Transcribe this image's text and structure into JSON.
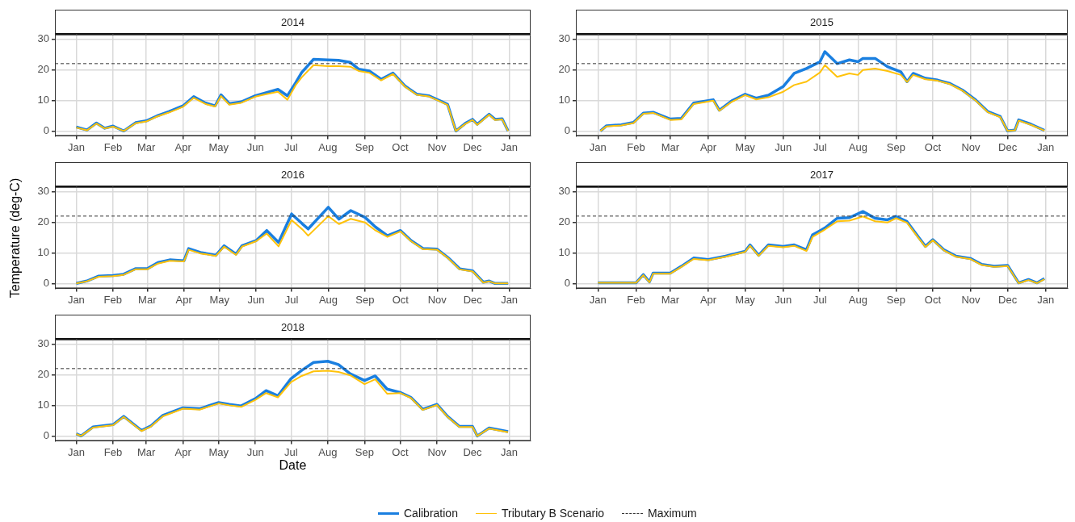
{
  "chart_data": [
    {
      "type": "line",
      "title": "2014",
      "xlim": [
        "2013-12-14",
        "2015-01-19"
      ],
      "ylim": [
        -1.6,
        31.5
      ],
      "yticks": [
        0,
        10,
        20,
        30
      ],
      "grid": true,
      "legend": "bottom",
      "xticks": [
        {
          "value": "2014-01-01",
          "label": "Jan"
        },
        {
          "value": "2014-02-01",
          "label": "Feb"
        },
        {
          "value": "2014-03-01",
          "label": "Mar"
        },
        {
          "value": "2014-04-01",
          "label": "Apr"
        },
        {
          "value": "2014-05-01",
          "label": "May"
        },
        {
          "value": "2014-06-01",
          "label": "Jun"
        },
        {
          "value": "2014-07-01",
          "label": "Jul"
        },
        {
          "value": "2014-08-01",
          "label": "Aug"
        },
        {
          "value": "2014-09-01",
          "label": "Sep"
        },
        {
          "value": "2014-10-01",
          "label": "Oct"
        },
        {
          "value": "2014-11-01",
          "label": "Nov"
        },
        {
          "value": "2014-12-01",
          "label": "Dec"
        },
        {
          "value": "2015-01-01",
          "label": "Jan"
        }
      ],
      "ref_lines": [
        {
          "axis": "y",
          "value": 22,
          "label": "Maximum",
          "color": "#333333",
          "line_style": "dashed"
        }
      ],
      "x": [
        "2014-01-01",
        "2014-01-10",
        "2014-01-18",
        "2014-01-25",
        "2014-02-01",
        "2014-02-10",
        "2014-02-20",
        "2014-03-01",
        "2014-03-10",
        "2014-03-20",
        "2014-04-01",
        "2014-04-10",
        "2014-04-20",
        "2014-04-28",
        "2014-05-03",
        "2014-05-10",
        "2014-05-20",
        "2014-06-01",
        "2014-06-10",
        "2014-06-20",
        "2014-06-28",
        "2014-07-05",
        "2014-07-10",
        "2014-07-20",
        "2014-08-01",
        "2014-08-10",
        "2014-08-20",
        "2014-08-27",
        "2014-09-05",
        "2014-09-15",
        "2014-09-25",
        "2014-10-05",
        "2014-10-15",
        "2014-10-25",
        "2014-11-05",
        "2014-11-10",
        "2014-11-17",
        "2014-11-25",
        "2014-12-01",
        "2014-12-05",
        "2014-12-15",
        "2014-12-20",
        "2014-12-26",
        "2014-12-31"
      ],
      "series": [
        {
          "name": "Calibration",
          "color": "#1a7fe0",
          "values": [
            1.3,
            0.3,
            2.6,
            0.9,
            1.6,
            0,
            2.7,
            3.3,
            4.9,
            6.3,
            8.2,
            11.2,
            9.1,
            8.2,
            11.8,
            8.9,
            9.5,
            11.5,
            12.5,
            13.6,
            11.5,
            15.8,
            19.1,
            23.4,
            23.2,
            23.1,
            22.4,
            20.2,
            19.6,
            16.9,
            18.9,
            14.7,
            12,
            11.5,
            9.6,
            8.7,
            0,
            2.5,
            3.8,
            2.2,
            5.5,
            3.8,
            4,
            0
          ]
        },
        {
          "name": "Tributary B Scenario",
          "color": "#ffc20a",
          "values": [
            1.1,
            0.2,
            2.4,
            0.8,
            1.4,
            0,
            2.5,
            3.1,
            4.7,
            6,
            7.9,
            10.8,
            8.8,
            8,
            11.4,
            8.6,
            9.2,
            11.2,
            12,
            12.8,
            10.2,
            15,
            17.5,
            21.5,
            21.2,
            21.2,
            21,
            19.6,
            19,
            16.5,
            18.6,
            14.5,
            11.8,
            11.3,
            9.4,
            8.5,
            0,
            2.3,
            3.6,
            2,
            5.3,
            3.6,
            3.8,
            0
          ]
        }
      ]
    },
    {
      "type": "line",
      "title": "2015",
      "xlim": [
        "2014-12-14",
        "2016-01-19"
      ],
      "ylim": [
        -1.6,
        31.5
      ],
      "yticks": [
        0,
        10,
        20,
        30
      ],
      "grid": true,
      "xticks": [
        {
          "value": "2015-01-01",
          "label": "Jan"
        },
        {
          "value": "2015-02-01",
          "label": "Feb"
        },
        {
          "value": "2015-03-01",
          "label": "Mar"
        },
        {
          "value": "2015-04-01",
          "label": "Apr"
        },
        {
          "value": "2015-05-01",
          "label": "May"
        },
        {
          "value": "2015-06-01",
          "label": "Jun"
        },
        {
          "value": "2015-07-01",
          "label": "Jul"
        },
        {
          "value": "2015-08-01",
          "label": "Aug"
        },
        {
          "value": "2015-09-01",
          "label": "Sep"
        },
        {
          "value": "2015-10-01",
          "label": "Oct"
        },
        {
          "value": "2015-11-01",
          "label": "Nov"
        },
        {
          "value": "2015-12-01",
          "label": "Dec"
        },
        {
          "value": "2016-01-01",
          "label": "Jan"
        }
      ],
      "ref_lines": [
        {
          "axis": "y",
          "value": 22,
          "color": "#333333",
          "line_style": "dashed"
        }
      ],
      "x": [
        "2015-01-03",
        "2015-01-08",
        "2015-01-20",
        "2015-01-30",
        "2015-02-07",
        "2015-02-15",
        "2015-03-01",
        "2015-03-10",
        "2015-03-20",
        "2015-04-05",
        "2015-04-10",
        "2015-04-20",
        "2015-05-01",
        "2015-05-10",
        "2015-05-20",
        "2015-06-01",
        "2015-06-10",
        "2015-06-20",
        "2015-07-01",
        "2015-07-05",
        "2015-07-15",
        "2015-07-25",
        "2015-08-01",
        "2015-08-05",
        "2015-08-15",
        "2015-08-25",
        "2015-09-05",
        "2015-09-10",
        "2015-09-15",
        "2015-09-25",
        "2015-10-05",
        "2015-10-15",
        "2015-10-25",
        "2015-11-05",
        "2015-11-15",
        "2015-11-25",
        "2015-12-01",
        "2015-12-07",
        "2015-12-10",
        "2015-12-20",
        "2015-12-31"
      ],
      "series": [
        {
          "color": "#1a7fe0",
          "values": [
            0,
            1.7,
            2,
            2.8,
            5.8,
            6.1,
            3.9,
            4.1,
            9.1,
            10.2,
            6.8,
            9.8,
            12,
            10.7,
            11.7,
            14.5,
            18.8,
            20.4,
            22.6,
            25.9,
            22,
            23.2,
            22.6,
            23.7,
            23.7,
            21,
            19.3,
            16.1,
            18.8,
            17.2,
            16.6,
            15.5,
            13.4,
            10.1,
            6.3,
            4.7,
            0,
            0.3,
            3.6,
            2.2,
            0.2
          ]
        },
        {
          "color": "#ffc20a",
          "values": [
            0,
            1.5,
            1.8,
            2.6,
            5.6,
            5.9,
            3.6,
            3.8,
            8.8,
            9.9,
            6.6,
            9.5,
            11.7,
            10.3,
            11,
            12.8,
            15,
            16.1,
            19.1,
            21.5,
            17.7,
            18.8,
            18.3,
            19.9,
            20.4,
            19.6,
            18.3,
            16,
            18.3,
            16.9,
            16.4,
            15.3,
            13.2,
            9.9,
            6.1,
            4.5,
            0,
            0.2,
            3.4,
            2,
            0.1
          ]
        }
      ]
    },
    {
      "type": "line",
      "title": "2016",
      "ylabel": "Temperature (deg-C)",
      "xlim": [
        "2015-12-14",
        "2017-01-19"
      ],
      "ylim": [
        -1.6,
        31.5
      ],
      "yticks": [
        0,
        10,
        20,
        30
      ],
      "grid": true,
      "xticks": [
        {
          "value": "2016-01-01",
          "label": "Jan"
        },
        {
          "value": "2016-02-01",
          "label": "Feb"
        },
        {
          "value": "2016-03-01",
          "label": "Mar"
        },
        {
          "value": "2016-04-01",
          "label": "Apr"
        },
        {
          "value": "2016-05-01",
          "label": "May"
        },
        {
          "value": "2016-06-01",
          "label": "Jun"
        },
        {
          "value": "2016-07-01",
          "label": "Jul"
        },
        {
          "value": "2016-08-01",
          "label": "Aug"
        },
        {
          "value": "2016-09-01",
          "label": "Sep"
        },
        {
          "value": "2016-10-01",
          "label": "Oct"
        },
        {
          "value": "2016-11-01",
          "label": "Nov"
        },
        {
          "value": "2016-12-01",
          "label": "Dec"
        },
        {
          "value": "2017-01-01",
          "label": "Jan"
        }
      ],
      "ref_lines": [
        {
          "axis": "y",
          "value": 22,
          "color": "#333333",
          "line_style": "dashed"
        }
      ],
      "x": [
        "2016-01-01",
        "2016-01-10",
        "2016-01-20",
        "2016-02-01",
        "2016-02-10",
        "2016-02-20",
        "2016-03-01",
        "2016-03-10",
        "2016-03-20",
        "2016-04-01",
        "2016-04-05",
        "2016-04-15",
        "2016-04-28",
        "2016-05-05",
        "2016-05-15",
        "2016-05-20",
        "2016-06-01",
        "2016-06-10",
        "2016-06-20",
        "2016-07-01",
        "2016-07-10",
        "2016-07-15",
        "2016-08-01",
        "2016-08-10",
        "2016-08-20",
        "2016-09-01",
        "2016-09-10",
        "2016-09-20",
        "2016-10-01",
        "2016-10-10",
        "2016-10-20",
        "2016-11-01",
        "2016-11-10",
        "2016-11-20",
        "2016-12-01",
        "2016-12-10",
        "2016-12-15",
        "2016-12-20",
        "2016-12-31"
      ],
      "series": [
        {
          "color": "#1a7fe0",
          "values": [
            0,
            0.8,
            2.4,
            2.6,
            3,
            4.8,
            4.8,
            6.8,
            7.7,
            7.4,
            11.4,
            10.1,
            9.2,
            12.3,
            9.6,
            12.3,
            14,
            17.3,
            13.4,
            22.7,
            19.5,
            17.8,
            24.9,
            21,
            23.8,
            21.6,
            18.4,
            15.6,
            17.3,
            14,
            11.4,
            11.2,
            8.5,
            4.8,
            4.1,
            0.4,
            0.8,
            0,
            0
          ]
        },
        {
          "color": "#ffc20a",
          "values": [
            0,
            0.7,
            2.2,
            2.4,
            2.8,
            4.6,
            4.6,
            6.5,
            7.4,
            7.2,
            11,
            9.8,
            9,
            12,
            9.3,
            12,
            13.8,
            16.3,
            12.1,
            20.7,
            17.7,
            15.6,
            22,
            19.4,
            21.1,
            19.9,
            17.3,
            15.2,
            17,
            13.8,
            11.2,
            11,
            8.3,
            4.6,
            3.9,
            0.3,
            0.7,
            0,
            0
          ]
        }
      ]
    },
    {
      "type": "line",
      "title": "2017",
      "xlim": [
        "2016-12-14",
        "2018-01-19"
      ],
      "ylim": [
        -1.6,
        31.5
      ],
      "yticks": [
        0,
        10,
        20,
        30
      ],
      "grid": true,
      "xticks": [
        {
          "value": "2017-01-01",
          "label": "Jan"
        },
        {
          "value": "2017-02-01",
          "label": "Feb"
        },
        {
          "value": "2017-03-01",
          "label": "Mar"
        },
        {
          "value": "2017-04-01",
          "label": "Apr"
        },
        {
          "value": "2017-05-01",
          "label": "May"
        },
        {
          "value": "2017-06-01",
          "label": "Jun"
        },
        {
          "value": "2017-07-01",
          "label": "Jul"
        },
        {
          "value": "2017-08-01",
          "label": "Aug"
        },
        {
          "value": "2017-09-01",
          "label": "Sep"
        },
        {
          "value": "2017-10-01",
          "label": "Oct"
        },
        {
          "value": "2017-11-01",
          "label": "Nov"
        },
        {
          "value": "2017-12-01",
          "label": "Dec"
        },
        {
          "value": "2018-01-01",
          "label": "Jan"
        }
      ],
      "ref_lines": [
        {
          "axis": "y",
          "value": 22,
          "color": "#333333",
          "line_style": "dashed"
        }
      ],
      "x": [
        "2017-01-01",
        "2017-02-01",
        "2017-02-07",
        "2017-02-12",
        "2017-02-15",
        "2017-03-01",
        "2017-03-10",
        "2017-03-20",
        "2017-04-01",
        "2017-04-15",
        "2017-05-01",
        "2017-05-05",
        "2017-05-12",
        "2017-05-20",
        "2017-06-01",
        "2017-06-10",
        "2017-06-20",
        "2017-06-25",
        "2017-07-05",
        "2017-07-15",
        "2017-07-25",
        "2017-08-05",
        "2017-08-15",
        "2017-08-25",
        "2017-09-01",
        "2017-09-10",
        "2017-09-20",
        "2017-09-25",
        "2017-10-01",
        "2017-10-10",
        "2017-10-20",
        "2017-11-01",
        "2017-11-10",
        "2017-11-20",
        "2017-12-01",
        "2017-12-10",
        "2017-12-18",
        "2017-12-25",
        "2017-12-31"
      ],
      "series": [
        {
          "color": "#1a7fe0",
          "values": [
            0.2,
            0.2,
            2.9,
            0.5,
            3.4,
            3.4,
            5.6,
            8.3,
            7.8,
            8.9,
            10.5,
            12.6,
            9.2,
            12.6,
            12.1,
            12.6,
            11,
            15.9,
            18.1,
            21.3,
            21.5,
            23.5,
            21.3,
            20.8,
            21.9,
            20.2,
            14.8,
            12.1,
            14.3,
            11,
            8.9,
            8.1,
            6.2,
            5.6,
            5.9,
            0.2,
            1.3,
            0.2,
            1.6
          ]
        },
        {
          "color": "#ffc20a",
          "values": [
            0.2,
            0.2,
            2.7,
            0.4,
            3.2,
            3.2,
            5.4,
            8,
            7.6,
            8.7,
            10.3,
            12.3,
            9,
            12.3,
            11.8,
            12.3,
            10.6,
            15.2,
            17.6,
            20.3,
            20.5,
            21.9,
            20.3,
            19.9,
            21.3,
            19.8,
            14.5,
            11.9,
            14.1,
            10.8,
            8.7,
            7.9,
            6,
            5.4,
            5.7,
            0.1,
            1.1,
            0.1,
            1.4
          ]
        }
      ]
    },
    {
      "type": "line",
      "title": "2018",
      "xlabel": "Date",
      "xlim": [
        "2017-12-14",
        "2019-01-19"
      ],
      "ylim": [
        -1.6,
        31.5
      ],
      "yticks": [
        0,
        10,
        20,
        30
      ],
      "grid": true,
      "xticks": [
        {
          "value": "2018-01-01",
          "label": "Jan"
        },
        {
          "value": "2018-02-01",
          "label": "Feb"
        },
        {
          "value": "2018-03-01",
          "label": "Mar"
        },
        {
          "value": "2018-04-01",
          "label": "Apr"
        },
        {
          "value": "2018-05-01",
          "label": "May"
        },
        {
          "value": "2018-06-01",
          "label": "Jun"
        },
        {
          "value": "2018-07-01",
          "label": "Jul"
        },
        {
          "value": "2018-08-01",
          "label": "Aug"
        },
        {
          "value": "2018-09-01",
          "label": "Sep"
        },
        {
          "value": "2018-10-01",
          "label": "Oct"
        },
        {
          "value": "2018-11-01",
          "label": "Nov"
        },
        {
          "value": "2018-12-01",
          "label": "Dec"
        },
        {
          "value": "2019-01-01",
          "label": "Jan"
        }
      ],
      "ref_lines": [
        {
          "axis": "y",
          "value": 22,
          "color": "#333333",
          "line_style": "dashed"
        }
      ],
      "x": [
        "2018-01-01",
        "2018-01-05",
        "2018-01-15",
        "2018-02-01",
        "2018-02-10",
        "2018-02-25",
        "2018-03-05",
        "2018-03-15",
        "2018-04-01",
        "2018-04-15",
        "2018-05-01",
        "2018-05-10",
        "2018-05-20",
        "2018-06-01",
        "2018-06-10",
        "2018-06-20",
        "2018-07-01",
        "2018-07-10",
        "2018-07-20",
        "2018-08-01",
        "2018-08-10",
        "2018-08-20",
        "2018-09-01",
        "2018-09-10",
        "2018-09-20",
        "2018-10-01",
        "2018-10-10",
        "2018-10-20",
        "2018-11-01",
        "2018-11-10",
        "2018-11-20",
        "2018-12-01",
        "2018-12-05",
        "2018-12-15",
        "2018-12-31"
      ],
      "series": [
        {
          "color": "#1a7fe0",
          "values": [
            0.7,
            0,
            2.9,
            3.7,
            6.4,
            1.8,
            3.3,
            6.7,
            9.2,
            8.9,
            10.9,
            10.3,
            9.8,
            12.2,
            14.8,
            13.1,
            18.7,
            21.4,
            24,
            24.4,
            23.3,
            20.3,
            18.1,
            19.6,
            15.3,
            14.2,
            12.6,
            8.7,
            10.3,
            6.4,
            3.1,
            3.1,
            0,
            2.6,
            1.4
          ]
        },
        {
          "color": "#ffc20a",
          "values": [
            0.6,
            0,
            2.7,
            3.5,
            6.2,
            1.6,
            3.1,
            6.4,
            8.9,
            8.6,
            10.6,
            10,
            9.5,
            11.8,
            14,
            12.6,
            17.6,
            19.6,
            21.1,
            21.3,
            20.9,
            19.8,
            16.9,
            18.5,
            13.8,
            14,
            12.4,
            8.5,
            10.1,
            6.2,
            2.9,
            2.9,
            0,
            2.4,
            1.2
          ]
        }
      ]
    }
  ]
}
